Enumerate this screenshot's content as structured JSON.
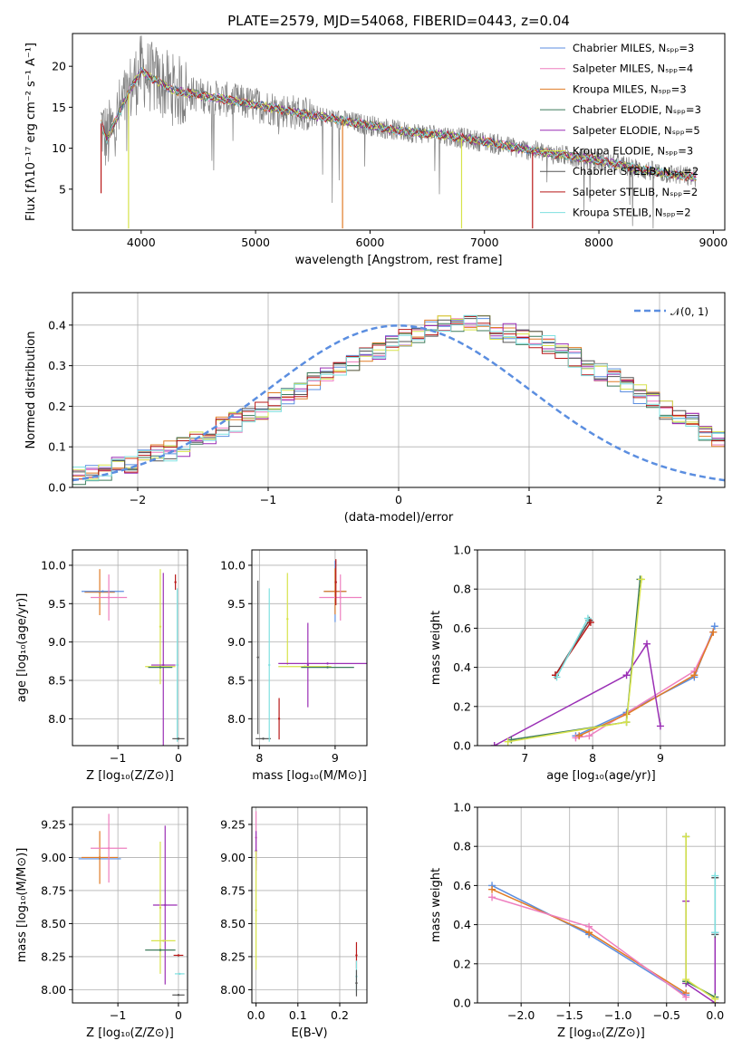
{
  "colors": {
    "Chabrier MILES": "#5b8ee0",
    "Salpeter MILES": "#ee7fbf",
    "Kroupa MILES": "#e07b26",
    "Chabrier ELODIE": "#3c7a5a",
    "Salpeter ELODIE": "#9a2fb5",
    "Kroupa ELODIE": "#d7e34a",
    "Chabrier STELIB": "#555555",
    "Salpeter STELIB": "#b81818",
    "Kroupa STELIB": "#7fe0e0",
    "data": "#7f7f7f",
    "normal": "#5b8ee0"
  },
  "chart_data": [
    {
      "panel": "spectrum",
      "type": "line",
      "title": "PLATE=2579, MJD=54068, FIBERID=0443, z=0.04",
      "xlabel": "wavelength [Angstrom, rest frame]",
      "ylabel": "Flux [fλ10⁻¹⁷ erg cm⁻² s⁻¹ A⁻¹]",
      "xlim": [
        3400,
        9100
      ],
      "ylim": [
        0,
        24
      ],
      "xticks": [
        4000,
        5000,
        6000,
        7000,
        8000,
        9000
      ],
      "yticks": [
        5,
        10,
        15,
        20
      ],
      "legend_position": "top-right",
      "legend": [
        {
          "label": "Chabrier MILES, Nₛₚₚ=3",
          "color_key": "Chabrier MILES"
        },
        {
          "label": "Salpeter MILES, Nₛₚₚ=4",
          "color_key": "Salpeter MILES"
        },
        {
          "label": "Kroupa MILES, Nₛₚₚ=3",
          "color_key": "Kroupa MILES"
        },
        {
          "label": "Chabrier ELODIE, Nₛₚₚ=3",
          "color_key": "Chabrier ELODIE"
        },
        {
          "label": "Salpeter ELODIE, Nₛₚₚ=5",
          "color_key": "Salpeter ELODIE"
        },
        {
          "label": "Kroupa ELODIE, Nₛₚₚ=3",
          "color_key": "Kroupa ELODIE"
        },
        {
          "label": "Chabrier STELIB, Nₛₚₚ=2",
          "color_key": "Chabrier STELIB"
        },
        {
          "label": "Salpeter STELIB, Nₛₚₚ=2",
          "color_key": "Salpeter STELIB"
        },
        {
          "label": "Kroupa STELIB, Nₛₚₚ=2",
          "color_key": "Kroupa STELIB"
        }
      ],
      "model_continuum": {
        "x": [
          3650,
          3700,
          3800,
          3900,
          4000,
          4100,
          4300,
          4500,
          4800,
          5000,
          5300,
          5600,
          6000,
          6300,
          6600,
          7000,
          7300,
          7600,
          8000,
          8400,
          8800
        ],
        "y": [
          13,
          11,
          14,
          17,
          19.5,
          18.5,
          17,
          16.5,
          15.8,
          15.3,
          14.5,
          13.8,
          12.8,
          12.0,
          11.7,
          10.8,
          10.0,
          9.3,
          8.5,
          7.3,
          6.5
        ]
      },
      "model_spikes": [
        {
          "x": 3650,
          "y": 4.5,
          "color_key": "Salpeter STELIB"
        },
        {
          "x": 3890,
          "y": 0.2,
          "color_key": "Kroupa ELODIE"
        },
        {
          "x": 5760,
          "y": 0.2,
          "color_key": "Kroupa MILES"
        },
        {
          "x": 6800,
          "y": 0.2,
          "color_key": "Kroupa ELODIE"
        },
        {
          "x": 7420,
          "y": 0.2,
          "color_key": "Salpeter STELIB"
        }
      ]
    },
    {
      "panel": "residuals",
      "type": "line",
      "xlabel": "(data-model)/error",
      "ylabel": "Normed distribution",
      "xlim": [
        -2.5,
        2.5
      ],
      "ylim": [
        0,
        0.48
      ],
      "xticks": [
        -2,
        -1,
        0,
        1,
        2
      ],
      "yticks": [
        0.0,
        0.1,
        0.2,
        0.3,
        0.4
      ],
      "grid": true,
      "legend_position": "top-right",
      "normal_label": "𝒩(0, 1)",
      "bin_width": 0.1,
      "hist_base": [
        0.03,
        0.04,
        0.04,
        0.05,
        0.06,
        0.07,
        0.08,
        0.09,
        0.1,
        0.12,
        0.13,
        0.15,
        0.16,
        0.18,
        0.19,
        0.21,
        0.22,
        0.24,
        0.26,
        0.28,
        0.3,
        0.31,
        0.33,
        0.34,
        0.36,
        0.37,
        0.38,
        0.39,
        0.4,
        0.4,
        0.4,
        0.4,
        0.39,
        0.38,
        0.37,
        0.36,
        0.35,
        0.33,
        0.32,
        0.3,
        0.28,
        0.27,
        0.25,
        0.23,
        0.21,
        0.19,
        0.17,
        0.16,
        0.14,
        0.12,
        0.11,
        0.1,
        0.09,
        0.07,
        0.06,
        0.05,
        0.05,
        0.04,
        0.03,
        0.03
      ]
    },
    {
      "panel": "Z-vs-age",
      "type": "scatter",
      "xlabel": "Z [log₁₀(Z/Z⊙)]",
      "ylabel": "age  [log₁₀(age/yr)]",
      "xlim": [
        -1.75,
        0.15
      ],
      "ylim": [
        7.65,
        10.2
      ],
      "xticks": [
        -1,
        0
      ],
      "yticks": [
        8.0,
        8.5,
        9.0,
        9.5,
        10.0
      ],
      "grid": true,
      "points": [
        {
          "color_key": "Kroupa MILES",
          "x": -1.3,
          "y": 9.65,
          "xerr": 0.25,
          "yerr": 0.3
        },
        {
          "color_key": "Chabrier MILES",
          "x": -1.25,
          "y": 9.66,
          "xerr": 0.35,
          "yerr": 0.0
        },
        {
          "color_key": "Salpeter MILES",
          "x": -1.15,
          "y": 9.58,
          "xerr": 0.3,
          "yerr": 0.3
        },
        {
          "color_key": "Salpeter STELIB",
          "x": -0.05,
          "y": 9.78,
          "xerr": 0.0,
          "yerr": 0.1
        },
        {
          "color_key": "Kroupa ELODIE",
          "x": -0.3,
          "y": 9.2,
          "xerr": 0.0,
          "yerr": 0.75
        },
        {
          "color_key": "Salpeter ELODIE",
          "x": -0.25,
          "y": 8.7,
          "xerr": 0.2,
          "yerr": 1.2
        },
        {
          "color_key": "Kroupa ELODIE",
          "x": -0.3,
          "y": 8.68,
          "xerr": 0.25,
          "yerr": 0.0
        },
        {
          "color_key": "Chabrier ELODIE",
          "x": -0.3,
          "y": 8.67,
          "xerr": 0.2,
          "yerr": 0.0
        },
        {
          "color_key": "Kroupa STELIB",
          "x": -0.02,
          "y": 8.7,
          "xerr": 0.0,
          "yerr": 1.0
        },
        {
          "color_key": "Chabrier STELIB",
          "x": 0.0,
          "y": 7.74,
          "xerr": 0.1,
          "yerr": 0.0
        }
      ]
    },
    {
      "panel": "mass-vs-age",
      "type": "scatter",
      "xlabel": "mass [log₁₀(M/M⊙)]",
      "ylabel": "",
      "xlim": [
        7.9,
        9.42
      ],
      "ylim": [
        7.65,
        10.2
      ],
      "xticks": [
        8,
        9
      ],
      "yticks": [
        8.0,
        8.5,
        9.0,
        9.5,
        10.0
      ],
      "grid": true,
      "points": [
        {
          "color_key": "Chabrier STELIB",
          "x": 7.98,
          "y": 8.8,
          "xerr": 0.0,
          "yerr": 1.0
        },
        {
          "color_key": "Chabrier STELIB",
          "x": 8.05,
          "y": 7.74,
          "xerr": 0.1,
          "yerr": 0.0
        },
        {
          "color_key": "Salpeter STELIB",
          "x": 8.26,
          "y": 8.0,
          "xerr": 0.0,
          "yerr": 0.27
        },
        {
          "color_key": "Kroupa STELIB",
          "x": 8.13,
          "y": 8.7,
          "xerr": 0.0,
          "yerr": 1.0
        },
        {
          "color_key": "Kroupa ELODIE",
          "x": 8.37,
          "y": 9.3,
          "xerr": 0.0,
          "yerr": 0.6
        },
        {
          "color_key": "Salpeter ELODIE",
          "x": 8.64,
          "y": 8.7,
          "xerr": 0.0,
          "yerr": 0.55
        },
        {
          "color_key": "Salpeter ELODIE",
          "x": 8.9,
          "y": 8.72,
          "xerr": 0.65,
          "yerr": 0.0
        },
        {
          "color_key": "Kroupa ELODIE",
          "x": 8.6,
          "y": 8.68,
          "xerr": 0.35,
          "yerr": 0.0
        },
        {
          "color_key": "Chabrier ELODIE",
          "x": 8.9,
          "y": 8.67,
          "xerr": 0.35,
          "yerr": 0.0
        },
        {
          "color_key": "Chabrier MILES",
          "x": 9.0,
          "y": 9.66,
          "xerr": 0.15,
          "yerr": 0.4
        },
        {
          "color_key": "Kroupa MILES",
          "x": 9.0,
          "y": 9.66,
          "xerr": 0.15,
          "yerr": 0.3
        },
        {
          "color_key": "Salpeter MILES",
          "x": 9.07,
          "y": 9.58,
          "xerr": 0.28,
          "yerr": 0.3
        },
        {
          "color_key": "Salpeter STELIB",
          "x": 9.01,
          "y": 9.78,
          "xerr": 0.0,
          "yerr": 0.3
        }
      ]
    },
    {
      "panel": "age-vs-weight",
      "type": "line",
      "xlabel": "age  [log₁₀(age/yr)]",
      "ylabel": "mass weight",
      "xlim": [
        6.3,
        9.95
      ],
      "ylim": [
        0,
        1
      ],
      "xticks": [
        7,
        8,
        9
      ],
      "yticks": [
        0.0,
        0.2,
        0.4,
        0.6,
        0.8,
        1.0
      ],
      "grid": true,
      "series": [
        {
          "color_key": "Chabrier STELIB",
          "x": [
            7.45,
            7.95
          ],
          "y": [
            0.36,
            0.64
          ]
        },
        {
          "color_key": "Salpeter STELIB",
          "x": [
            7.45,
            7.97
          ],
          "y": [
            0.36,
            0.63
          ]
        },
        {
          "color_key": "Kroupa STELIB",
          "x": [
            7.47,
            7.93
          ],
          "y": [
            0.35,
            0.65
          ]
        },
        {
          "color_key": "Chabrier MILES",
          "x": [
            7.75,
            8.5,
            9.5,
            9.8
          ],
          "y": [
            0.05,
            0.17,
            0.35,
            0.61
          ]
        },
        {
          "color_key": "Salpeter MILES",
          "x": [
            7.75,
            7.95,
            9.5,
            9.78
          ],
          "y": [
            0.04,
            0.05,
            0.38,
            0.58
          ]
        },
        {
          "color_key": "Kroupa MILES",
          "x": [
            7.8,
            8.5,
            9.5,
            9.78
          ],
          "y": [
            0.05,
            0.16,
            0.36,
            0.58
          ]
        },
        {
          "color_key": "Salpeter ELODIE",
          "x": [
            6.55,
            8.5,
            8.8,
            9.0
          ],
          "y": [
            0.0,
            0.36,
            0.52,
            0.1
          ]
        },
        {
          "color_key": "Chabrier ELODIE",
          "x": [
            6.8,
            8.5,
            8.7
          ],
          "y": [
            0.03,
            0.12,
            0.85
          ]
        },
        {
          "color_key": "Kroupa ELODIE",
          "x": [
            6.75,
            8.5,
            8.72
          ],
          "y": [
            0.02,
            0.12,
            0.85
          ]
        }
      ]
    },
    {
      "panel": "Z-vs-mass",
      "type": "scatter",
      "xlabel": "Z [log₁₀(Z/Z⊙)]",
      "ylabel": "mass [log₁₀(M/M⊙)]",
      "xlim": [
        -1.75,
        0.15
      ],
      "ylim": [
        7.9,
        9.38
      ],
      "xticks": [
        -1,
        0
      ],
      "yticks": [
        8.0,
        8.25,
        8.5,
        8.75,
        9.0,
        9.25
      ],
      "grid": true,
      "points": [
        {
          "color_key": "Chabrier MILES",
          "x": -1.3,
          "y": 8.99,
          "xerr": 0.35,
          "yerr": 0.0
        },
        {
          "color_key": "Kroupa MILES",
          "x": -1.3,
          "y": 9.0,
          "xerr": 0.3,
          "yerr": 0.2
        },
        {
          "color_key": "Salpeter MILES",
          "x": -1.15,
          "y": 9.07,
          "xerr": 0.3,
          "yerr": 0.26
        },
        {
          "color_key": "Salpeter ELODIE",
          "x": -0.22,
          "y": 8.64,
          "xerr": 0.2,
          "yerr": 0.6
        },
        {
          "color_key": "Kroupa ELODIE",
          "x": -0.3,
          "y": 8.62,
          "xerr": 0.0,
          "yerr": 0.5
        },
        {
          "color_key": "Chabrier ELODIE",
          "x": -0.3,
          "y": 8.3,
          "xerr": 0.25,
          "yerr": 0.0
        },
        {
          "color_key": "Kroupa ELODIE",
          "x": -0.25,
          "y": 8.37,
          "xerr": 0.2,
          "yerr": 0.0
        },
        {
          "color_key": "Salpeter STELIB",
          "x": 0.0,
          "y": 8.26,
          "xerr": 0.08,
          "yerr": 0.0
        },
        {
          "color_key": "Kroupa STELIB",
          "x": 0.02,
          "y": 8.12,
          "xerr": 0.08,
          "yerr": 0.0
        },
        {
          "color_key": "Chabrier STELIB",
          "x": 0.0,
          "y": 7.96,
          "xerr": 0.1,
          "yerr": 0.0
        }
      ]
    },
    {
      "panel": "ebv-vs-mass",
      "type": "scatter",
      "xlabel": "E(B-V)",
      "ylabel": "",
      "xlim": [
        -0.01,
        0.265
      ],
      "ylim": [
        7.9,
        9.38
      ],
      "xticks": [
        0.0,
        0.1,
        0.2
      ],
      "yticks": [
        8.0,
        8.25,
        8.5,
        8.75,
        9.0,
        9.25
      ],
      "grid": true,
      "points": [
        {
          "color_key": "Salpeter MILES",
          "x": 0.0,
          "y": 9.15,
          "xerr": 0.0,
          "yerr": 0.2
        },
        {
          "color_key": "Salpeter ELODIE",
          "x": 0.0,
          "y": 9.05,
          "xerr": 0.0,
          "yerr": 0.15
        },
        {
          "color_key": "Kroupa ELODIE",
          "x": 0.0,
          "y": 8.6,
          "xerr": 0.0,
          "yerr": 0.45
        },
        {
          "color_key": "Salpeter STELIB",
          "x": 0.24,
          "y": 8.26,
          "xerr": 0.0,
          "yerr": 0.1
        },
        {
          "color_key": "Kroupa STELIB",
          "x": 0.24,
          "y": 8.1,
          "xerr": 0.0,
          "yerr": 0.12
        },
        {
          "color_key": "Chabrier STELIB",
          "x": 0.24,
          "y": 8.05,
          "xerr": 0.0,
          "yerr": 0.1
        }
      ]
    },
    {
      "panel": "Z-vs-weight",
      "type": "line",
      "xlabel": "Z [log₁₀(Z/Z⊙)]",
      "ylabel": "mass weight",
      "xlim": [
        -2.45,
        0.1
      ],
      "ylim": [
        0,
        1
      ],
      "xticks": [
        -2.0,
        -1.5,
        -1.0,
        -0.5,
        0.0
      ],
      "yticks": [
        0.0,
        0.2,
        0.4,
        0.6,
        0.8,
        1.0
      ],
      "grid": true,
      "series": [
        {
          "color_key": "Chabrier MILES",
          "x": [
            -2.3,
            -1.3,
            -0.3
          ],
          "y": [
            0.6,
            0.35,
            0.04
          ]
        },
        {
          "color_key": "Kroupa MILES",
          "x": [
            -2.3,
            -1.3,
            -0.3
          ],
          "y": [
            0.58,
            0.36,
            0.05
          ]
        },
        {
          "color_key": "Salpeter MILES",
          "x": [
            -2.3,
            -1.3,
            -0.3
          ],
          "y": [
            0.54,
            0.39,
            0.03
          ]
        },
        {
          "color_key": "Salpeter ELODIE",
          "x": [
            -0.3,
            -0.3,
            0.0,
            0.0
          ],
          "y": [
            0.52,
            0.1,
            0.0,
            0.36
          ]
        },
        {
          "color_key": "Chabrier ELODIE",
          "x": [
            -0.3,
            -0.3,
            0.0
          ],
          "y": [
            0.85,
            0.11,
            0.03
          ]
        },
        {
          "color_key": "Kroupa ELODIE",
          "x": [
            -0.3,
            -0.3,
            0.0
          ],
          "y": [
            0.85,
            0.12,
            0.02
          ]
        },
        {
          "color_key": "Chabrier STELIB",
          "x": [
            0.0,
            0.0
          ],
          "y": [
            0.64,
            0.35
          ]
        },
        {
          "color_key": "Kroupa STELIB",
          "x": [
            0.0,
            0.0
          ],
          "y": [
            0.65,
            0.36
          ]
        }
      ]
    }
  ]
}
